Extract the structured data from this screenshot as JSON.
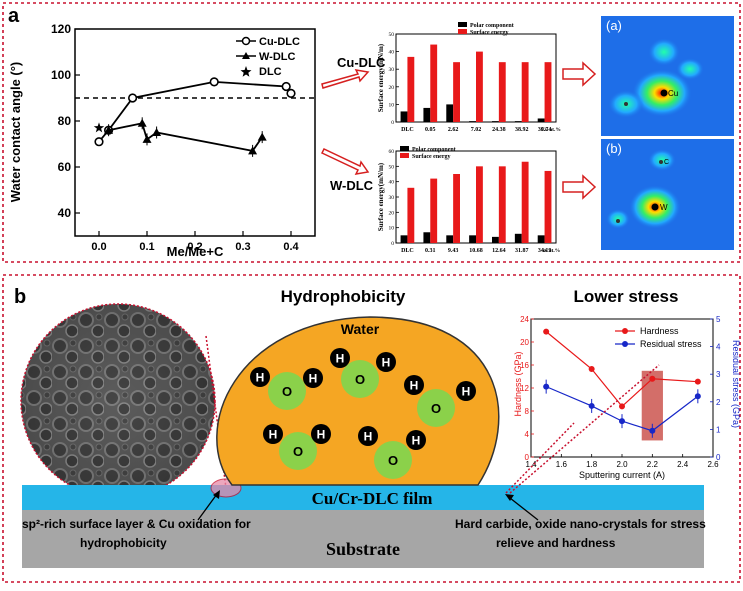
{
  "panel_a": {
    "label": "a",
    "chart1": {
      "ylabel": "Water contact angle (°)",
      "xlabel": "Me/Me+C",
      "yticks": [
        "40",
        "60",
        "80",
        "100",
        "120"
      ],
      "xticks": [
        "0.0",
        "0.1",
        "0.2",
        "0.3",
        "0.4"
      ],
      "legend": [
        "Cu-DLC",
        "W-DLC",
        "DLC"
      ],
      "dashed_line_y": 90
    },
    "arrow_labels": [
      "Cu-DLC",
      "W-DLC"
    ],
    "bar_top": {
      "ylabel": "Surface energy(mN/m)",
      "legend": [
        "Polar component",
        "Surface energy"
      ],
      "categories": [
        "DLC",
        "0.05",
        "2.62",
        "7.02",
        "24.38",
        "38.92",
        "39.74"
      ],
      "unit": "Cu at.%",
      "yticks": [
        "0",
        "10",
        "20",
        "30",
        "40",
        "50"
      ]
    },
    "bar_bottom": {
      "ylabel": "Surface energy(mN/m)",
      "legend": [
        "Polar component",
        "Surface energy"
      ],
      "categories": [
        "DLC",
        "0.31",
        "9.43",
        "10.68",
        "12.64",
        "31.87",
        "34.19"
      ],
      "unit": "W at.%",
      "yticks": [
        "0",
        "10",
        "20",
        "30",
        "40",
        "50",
        "60"
      ]
    },
    "map_a": {
      "label": "(a)",
      "atom": "Cu",
      "carbon": "C"
    },
    "map_b": {
      "label": "(b)",
      "atom": "W",
      "carbon": "C"
    }
  },
  "panel_b": {
    "label": "b",
    "title_center": "Hydrophobicity",
    "title_right": "Lower stress",
    "water_label": "Water",
    "h_atom": "H",
    "o_atom": "O",
    "film_label": "Cu/Cr-DLC film",
    "substrate_label": "Substrate",
    "note_left": [
      "sp²-rich surface layer & Cu oxidation for",
      "hydrophobicity"
    ],
    "note_right": [
      "Hard carbide, oxide nano-crystals for stress",
      "relieve and hardness"
    ],
    "chart2": {
      "ylabel_left": "Hardness (GPa)",
      "ylabel_right": "Residual stress (GPa)",
      "xlabel": "Sputtering current (A)",
      "xticks": [
        "1.4",
        "1.6",
        "1.8",
        "2.0",
        "2.2",
        "2.4",
        "2.6"
      ],
      "yticks_left": [
        "0",
        "4",
        "8",
        "12",
        "16",
        "20",
        "24"
      ],
      "yticks_right": [
        "0",
        "1",
        "2",
        "3",
        "4",
        "5"
      ],
      "legend": [
        "Hardness",
        "Residual stress"
      ]
    }
  },
  "colors": {
    "border_red": "#c8102e",
    "water": "#f5a623",
    "film": "#25b5e8",
    "substrate": "#a6a6a6",
    "o_green": "#8bd14a",
    "bar_red": "#e8191a",
    "stress_blue": "#1727c8"
  },
  "chart_data": [
    {
      "type": "line",
      "title": "",
      "xlabel": "Me/Me+C",
      "ylabel": "Water contact angle (°)",
      "xlim": [
        -0.05,
        0.45
      ],
      "ylim": [
        30,
        120
      ],
      "series": [
        {
          "name": "Cu-DLC",
          "x": [
            0.0,
            0.02,
            0.07,
            0.24,
            0.39,
            0.4
          ],
          "y": [
            71,
            76,
            90,
            97,
            95,
            92
          ]
        },
        {
          "name": "W-DLC",
          "x": [
            0.02,
            0.09,
            0.1,
            0.12,
            0.32,
            0.34
          ],
          "y": [
            76,
            79,
            72,
            75,
            67,
            73
          ]
        },
        {
          "name": "DLC",
          "x": [
            0.0
          ],
          "y": [
            77
          ]
        }
      ]
    },
    {
      "type": "bar",
      "xlabel": "Cu at.%",
      "ylabel": "Surface energy(mN/m)",
      "ylim": [
        0,
        50
      ],
      "categories": [
        "DLC",
        "0.05",
        "2.62",
        "7.02",
        "24.38",
        "38.92",
        "39.74"
      ],
      "series": [
        {
          "name": "Polar component",
          "values": [
            6,
            8,
            10,
            0.5,
            0.5,
            0.5,
            2
          ]
        },
        {
          "name": "Surface energy",
          "values": [
            37,
            44,
            34,
            40,
            34,
            34,
            34
          ]
        }
      ]
    },
    {
      "type": "bar",
      "xlabel": "W at.%",
      "ylabel": "Surface energy(mN/m)",
      "ylim": [
        0,
        60
      ],
      "categories": [
        "DLC",
        "0.31",
        "9.43",
        "10.68",
        "12.64",
        "31.87",
        "34.19"
      ],
      "series": [
        {
          "name": "Polar component",
          "values": [
            5,
            7,
            5,
            5,
            4,
            6,
            5
          ]
        },
        {
          "name": "Surface energy",
          "values": [
            36,
            42,
            45,
            50,
            50,
            53,
            47
          ]
        }
      ]
    },
    {
      "type": "line",
      "xlabel": "Sputtering current (A)",
      "ylabel": "Hardness (GPa)",
      "xlim": [
        1.4,
        2.6
      ],
      "ylim": [
        0,
        24
      ],
      "ylim_right": [
        0,
        5
      ],
      "series": [
        {
          "name": "Hardness",
          "axis": "left",
          "x": [
            1.5,
            1.8,
            2.0,
            2.2,
            2.5
          ],
          "y": [
            21.8,
            15.3,
            8.8,
            13.6,
            13.1
          ]
        },
        {
          "name": "Residual stress",
          "axis": "right",
          "x": [
            1.5,
            1.8,
            2.0,
            2.2,
            2.5
          ],
          "y": [
            2.55,
            1.85,
            1.3,
            0.95,
            2.2
          ]
        }
      ]
    }
  ]
}
